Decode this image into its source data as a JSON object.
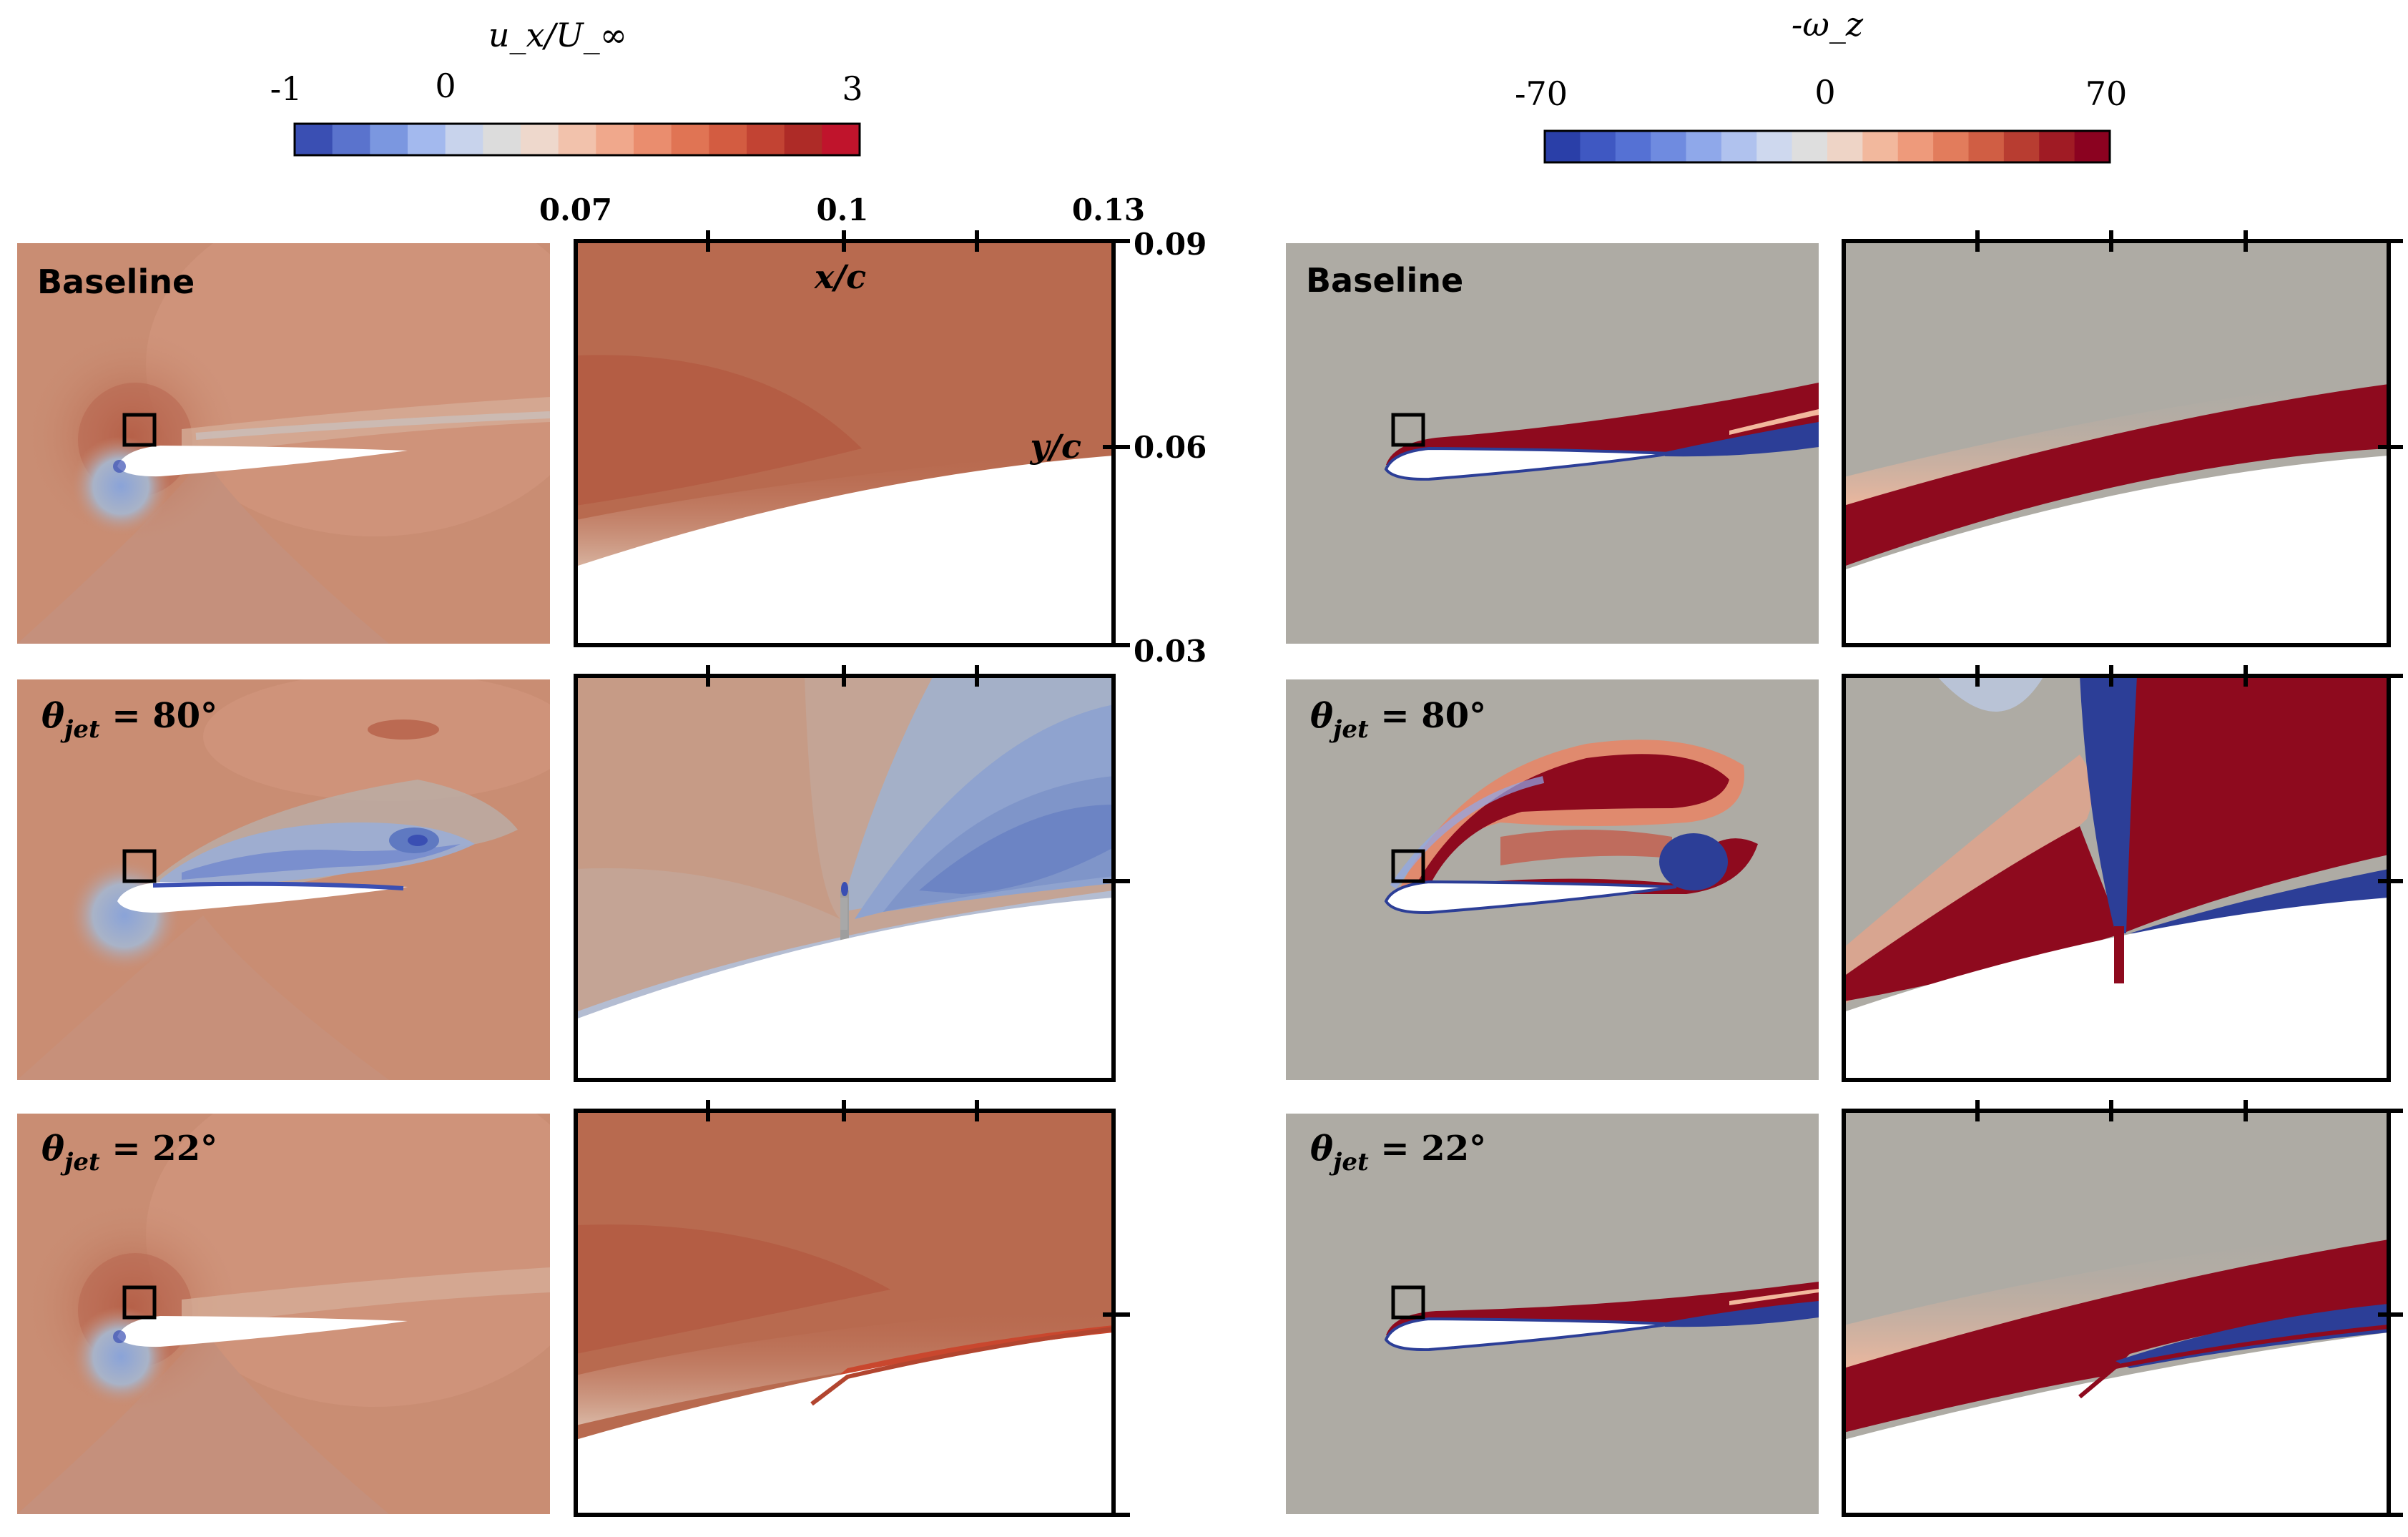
{
  "figure": {
    "colors": {
      "ux_bg": "#c98d73",
      "ux_high": "#b9664b",
      "ux_low": "#5f79c1",
      "vort_bg": "#aeaba4",
      "vort_pos": "#8e0a1e",
      "vort_neg": "#2c3e97"
    },
    "colorbar_ux": {
      "title": "u_x/U_∞",
      "ticks": [
        "-1",
        "0",
        "3"
      ],
      "stops": [
        "#3a4fb3",
        "#5a73cd",
        "#7b97e0",
        "#a3b9ee",
        "#c8d3ec",
        "#dcdcdc",
        "#eed8cc",
        "#f2c2ac",
        "#f0a88c",
        "#ea8d6e",
        "#e07454",
        "#d35c41",
        "#c24333",
        "#ae2b27",
        "#c0142c"
      ]
    },
    "colorbar_vort": {
      "title": "-ω_z",
      "ticks": [
        "-70",
        "0",
        "70"
      ],
      "stops": [
        "#2a3fa8",
        "#3f58c2",
        "#5571d4",
        "#6f8be0",
        "#8fa8ea",
        "#b0c2ee",
        "#ced8ee",
        "#dedede",
        "#eed4c6",
        "#f2b89d",
        "#ee9a7b",
        "#e27c5c",
        "#d05e44",
        "#b83d31",
        "#a01b24",
        "#8b0220"
      ]
    },
    "axis": {
      "x_ticks": [
        "0.07",
        "0.1",
        "0.13"
      ],
      "y_ticks": [
        "0.09",
        "0.06",
        "0.03"
      ],
      "xlabel": "x/c",
      "ylabel": "y/c"
    },
    "row_labels": {
      "baseline": "Baseline",
      "theta_80_sym": "θ",
      "theta_80_sub": "jet",
      "theta_80_val": " = 80°",
      "theta_22_sym": "θ",
      "theta_22_sub": "jet",
      "theta_22_val": " = 22°"
    }
  }
}
